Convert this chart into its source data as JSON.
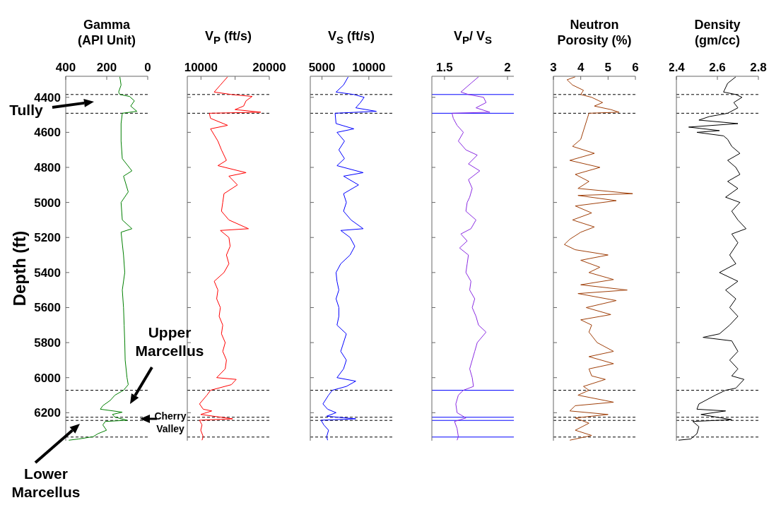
{
  "chart_data": [
    {
      "type": "line",
      "title": "Gamma (API Unit)",
      "ylabel": "Depth (ft)",
      "xlim": [
        400,
        0
      ],
      "xticks": [
        400,
        200,
        0
      ],
      "ylim": [
        6360,
        4280
      ],
      "yticks": [
        4400,
        4600,
        4800,
        5000,
        5200,
        5400,
        5600,
        5800,
        6000,
        6200
      ],
      "color": "#007f00",
      "annotations": [
        "Tully",
        "Upper Marcellus",
        "Cherry Valley",
        "Lower Marcellus"
      ],
      "x": [
        136,
        130,
        142,
        136,
        89,
        65,
        83,
        53,
        124,
        130,
        130,
        124,
        77,
        118,
        95,
        130,
        124,
        77,
        130,
        118,
        112,
        124,
        118,
        115,
        112,
        110,
        101,
        95,
        118,
        160,
        183,
        219,
        231,
        124,
        172,
        160,
        101,
        207,
        219,
        201,
        243,
        266,
        337,
        385
      ],
      "values": [
        4283,
        4330,
        4370,
        4384,
        4395,
        4420,
        4450,
        4480,
        4491,
        4550,
        4650,
        4750,
        4820,
        4850,
        4940,
        5000,
        5100,
        5150,
        5170,
        5300,
        5400,
        5500,
        5600,
        5700,
        5800,
        5900,
        6000,
        6040,
        6072,
        6100,
        6130,
        6160,
        6180,
        6197,
        6210,
        6225,
        6243,
        6250,
        6270,
        6300,
        6320,
        6337,
        6350,
        6357
      ],
      "ref_lines": [
        {
          "axis": "y",
          "value": 4384,
          "color": "#000000",
          "line_style": "dashed"
        },
        {
          "axis": "y",
          "value": 4491,
          "color": "#000000",
          "line_style": "dashed"
        },
        {
          "axis": "y",
          "value": 6072,
          "color": "#000000",
          "line_style": "dashed"
        },
        {
          "axis": "y",
          "value": 6226,
          "color": "#000000",
          "line_style": "dashed"
        },
        {
          "axis": "y",
          "value": 6244,
          "color": "#000000",
          "line_style": "dashed"
        },
        {
          "axis": "y",
          "value": 6339,
          "color": "#000000",
          "line_style": "dashed"
        }
      ]
    },
    {
      "type": "line",
      "title": "V$_{P}$ (ft/s)",
      "tick_labels": "x",
      "xlim": [
        8000,
        20000
      ],
      "xticks": [
        10000,
        {
          "value": 15000,
          "label": null
        },
        20000
      ],
      "ylim": [
        6360,
        4280
      ],
      "yticks": [
        4400,
        4600,
        4800,
        5000,
        5200,
        5400,
        5600,
        5800,
        6000,
        6200
      ],
      "color": "#ff0000",
      "x": [
        13900,
        12840,
        11940,
        14450,
        17490,
        16600,
        16240,
        14990,
        18750,
        11220,
        11400,
        13900,
        11400,
        12480,
        13000,
        13730,
        12480,
        16600,
        14090,
        15340,
        13370,
        13190,
        13000,
        14090,
        16950,
        12840,
        14090,
        14270,
        13730,
        14090,
        13370,
        11940,
        12480,
        12300,
        12840,
        12660,
        13190,
        13000,
        13550,
        13190,
        13730,
        13550,
        12300,
        15160,
        14450,
        11400,
        10870,
        9790,
        10330,
        11580,
        9970,
        14630,
        9790,
        10150,
        9970,
        10330,
        10150
      ],
      "values": [
        4283,
        4330,
        4370,
        4384,
        4395,
        4420,
        4450,
        4470,
        4485,
        4491,
        4520,
        4560,
        4580,
        4650,
        4700,
        4760,
        4790,
        4830,
        4850,
        4900,
        4950,
        5000,
        5050,
        5100,
        5150,
        5160,
        5200,
        5250,
        5300,
        5350,
        5400,
        5450,
        5500,
        5550,
        5600,
        5650,
        5700,
        5750,
        5800,
        5850,
        5900,
        5950,
        6000,
        6010,
        6040,
        6072,
        6100,
        6150,
        6180,
        6190,
        6210,
        6235,
        6243,
        6270,
        6300,
        6337,
        6357
      ],
      "ref_lines": [
        {
          "axis": "y",
          "value": 4384,
          "color": "#000000",
          "line_style": "dashed"
        },
        {
          "axis": "y",
          "value": 4491,
          "color": "#000000",
          "line_style": "dashed"
        },
        {
          "axis": "y",
          "value": 6072,
          "color": "#000000",
          "line_style": "dashed"
        },
        {
          "axis": "y",
          "value": 6226,
          "color": "#000000",
          "line_style": "dashed"
        },
        {
          "axis": "y",
          "value": 6244,
          "color": "#000000",
          "line_style": "dashed"
        },
        {
          "axis": "y",
          "value": 6339,
          "color": "#000000",
          "line_style": "dashed"
        }
      ]
    },
    {
      "type": "line",
      "title": "V$_{S}$ (ft/s)",
      "tick_labels": "x",
      "xlim": [
        3750,
        12500
      ],
      "xticks": [
        5000,
        10000
      ],
      "ylim": [
        6360,
        4280
      ],
      "yticks": [
        4400,
        4600,
        4800,
        5000,
        5200,
        5400,
        5600,
        5800,
        6000,
        6200
      ],
      "color": "#0000ff",
      "x": [
        7800,
        7300,
        6500,
        8400,
        9500,
        9100,
        8600,
        10800,
        6400,
        6500,
        8400,
        6600,
        7400,
        6800,
        7400,
        6600,
        9400,
        7300,
        8900,
        7300,
        7600,
        7300,
        8100,
        9400,
        7000,
        8000,
        8500,
        8000,
        7000,
        6500,
        6600,
        6800,
        6500,
        6800,
        6800,
        6600,
        7600,
        7300,
        7000,
        7600,
        7300,
        6600,
        8600,
        7600,
        6100,
        5700,
        5100,
        5600,
        6500,
        5500,
        8600,
        4900,
        5200,
        5700,
        5500,
        5600
      ],
      "values": [
        4283,
        4330,
        4370,
        4384,
        4400,
        4430,
        4460,
        4480,
        4491,
        4550,
        4580,
        4600,
        4650,
        4700,
        4750,
        4790,
        4830,
        4850,
        4900,
        4950,
        5000,
        5050,
        5100,
        5150,
        5160,
        5200,
        5250,
        5300,
        5350,
        5400,
        5450,
        5500,
        5550,
        5600,
        5650,
        5700,
        5750,
        5800,
        5850,
        5900,
        5950,
        6000,
        6020,
        6050,
        6072,
        6100,
        6150,
        6180,
        6200,
        6220,
        6235,
        6243,
        6270,
        6300,
        6337,
        6357
      ],
      "ref_lines": [
        {
          "axis": "y",
          "value": 4384,
          "color": "#000000",
          "line_style": "dashed"
        },
        {
          "axis": "y",
          "value": 4491,
          "color": "#000000",
          "line_style": "dashed"
        },
        {
          "axis": "y",
          "value": 6072,
          "color": "#000000",
          "line_style": "dashed"
        },
        {
          "axis": "y",
          "value": 6226,
          "color": "#000000",
          "line_style": "dashed"
        },
        {
          "axis": "y",
          "value": 6244,
          "color": "#000000",
          "line_style": "dashed"
        },
        {
          "axis": "y",
          "value": 6339,
          "color": "#000000",
          "line_style": "dashed"
        }
      ]
    },
    {
      "type": "line",
      "title": "V$_{P}$/ V$_{S}$",
      "tick_labels": "x",
      "xlim": [
        1.4,
        2.05
      ],
      "xticks": [
        1.5,
        2
      ],
      "ylim": [
        6360,
        4280
      ],
      "yticks": [
        4400,
        4600,
        4800,
        5000,
        5200,
        5400,
        5600,
        5800,
        6000,
        6200
      ],
      "color": "#8a2be2",
      "x": [
        1.77,
        1.71,
        1.63,
        1.69,
        1.81,
        1.83,
        1.75,
        1.86,
        1.56,
        1.57,
        1.6,
        1.65,
        1.61,
        1.67,
        1.76,
        1.69,
        1.78,
        1.69,
        1.72,
        1.7,
        1.68,
        1.67,
        1.75,
        1.71,
        1.63,
        1.68,
        1.62,
        1.69,
        1.68,
        1.67,
        1.71,
        1.7,
        1.74,
        1.72,
        1.75,
        1.77,
        1.83,
        1.76,
        1.74,
        1.72,
        1.7,
        1.72,
        1.73,
        1.65,
        1.61,
        1.59,
        1.6,
        1.67,
        1.58,
        1.6,
        1.61,
        1.6
      ],
      "values": [
        4283,
        4320,
        4370,
        4384,
        4400,
        4430,
        4460,
        4485,
        4491,
        4520,
        4560,
        4600,
        4650,
        4700,
        4730,
        4780,
        4820,
        4870,
        4920,
        4970,
        5000,
        5050,
        5100,
        5150,
        5180,
        5220,
        5260,
        5300,
        5350,
        5400,
        5450,
        5500,
        5550,
        5600,
        5650,
        5700,
        5740,
        5800,
        5850,
        5900,
        5950,
        6000,
        6050,
        6072,
        6100,
        6150,
        6200,
        6230,
        6250,
        6290,
        6337,
        6357
      ],
      "ref_lines": [
        {
          "axis": "y",
          "value": 4384,
          "color": "#0000ff",
          "line_style": "solid"
        },
        {
          "axis": "y",
          "value": 4491,
          "color": "#0000ff",
          "line_style": "solid"
        },
        {
          "axis": "y",
          "value": 6072,
          "color": "#0000ff",
          "line_style": "solid"
        },
        {
          "axis": "y",
          "value": 6226,
          "color": "#0000ff",
          "line_style": "solid"
        },
        {
          "axis": "y",
          "value": 6244,
          "color": "#0000ff",
          "line_style": "solid"
        },
        {
          "axis": "y",
          "value": 6339,
          "color": "#0000ff",
          "line_style": "solid"
        }
      ]
    },
    {
      "type": "line",
      "title": "Neutron Porosity (%)",
      "tick_labels": "x",
      "xlim": [
        3,
        6
      ],
      "xticks": [
        3,
        4,
        5,
        6
      ],
      "ylim": [
        6360,
        4280
      ],
      "yticks": [
        4400,
        4600,
        4800,
        5000,
        5200,
        5400,
        5600,
        5800,
        6000,
        6200
      ],
      "color": "#a0400a",
      "x": [
        3.8,
        3.5,
        3.7,
        4.1,
        4.0,
        4.4,
        4.8,
        4.5,
        5.1,
        5.4,
        4.3,
        4.0,
        3.7,
        4.5,
        3.6,
        4.7,
        3.8,
        4.3,
        3.9,
        5.9,
        3.9,
        5.3,
        3.8,
        4.4,
        3.7,
        4.5,
        4.0,
        3.6,
        3.4,
        3.8,
        5.0,
        4.0,
        4.7,
        4.3,
        5.2,
        4.0,
        5.7,
        3.9,
        5.3,
        4.2,
        5.1,
        4.0,
        4.4,
        4.3,
        4.6,
        5.2,
        4.3,
        5.2,
        4.3,
        4.4,
        4.9,
        4.1,
        4.3,
        3.9,
        5.2,
        3.8,
        3.6,
        5.0,
        3.8,
        4.3,
        3.8,
        4.4,
        3.6
      ],
      "values": [
        4283,
        4300,
        4330,
        4360,
        4384,
        4400,
        4430,
        4450,
        4470,
        4485,
        4491,
        4640,
        4680,
        4720,
        4760,
        4800,
        4840,
        4880,
        4920,
        4950,
        4960,
        4990,
        5020,
        5060,
        5100,
        5140,
        5170,
        5210,
        5240,
        5270,
        5300,
        5330,
        5370,
        5400,
        5440,
        5470,
        5500,
        5520,
        5560,
        5600,
        5640,
        5670,
        5700,
        5740,
        5800,
        5850,
        5880,
        5920,
        5950,
        5990,
        6010,
        6050,
        6072,
        6100,
        6140,
        6160,
        6190,
        6210,
        6230,
        6260,
        6300,
        6330,
        6357
      ],
      "ref_lines": [
        {
          "axis": "y",
          "value": 4384,
          "color": "#000000",
          "line_style": "dashed"
        },
        {
          "axis": "y",
          "value": 4491,
          "color": "#000000",
          "line_style": "dashed"
        },
        {
          "axis": "y",
          "value": 6072,
          "color": "#000000",
          "line_style": "dashed"
        },
        {
          "axis": "y",
          "value": 6226,
          "color": "#000000",
          "line_style": "dashed"
        },
        {
          "axis": "y",
          "value": 6244,
          "color": "#000000",
          "line_style": "dashed"
        },
        {
          "axis": "y",
          "value": 6339,
          "color": "#000000",
          "line_style": "dashed"
        }
      ]
    },
    {
      "type": "line",
      "title": "Density (gm/cc)",
      "tick_labels": "x",
      "xlim": [
        2.4,
        2.8
      ],
      "xticks": [
        2.4,
        2.6,
        2.8
      ],
      "ylim": [
        6360,
        4280
      ],
      "yticks": [
        4400,
        4600,
        4800,
        5000,
        5200,
        5400,
        5600,
        5800,
        6000,
        6200
      ],
      "color": "#000000",
      "x": [
        2.69,
        2.65,
        2.63,
        2.69,
        2.72,
        2.68,
        2.7,
        2.65,
        2.56,
        2.51,
        2.7,
        2.46,
        2.61,
        2.5,
        2.63,
        2.65,
        2.67,
        2.71,
        2.65,
        2.69,
        2.71,
        2.65,
        2.7,
        2.64,
        2.71,
        2.67,
        2.7,
        2.74,
        2.67,
        2.7,
        2.66,
        2.69,
        2.61,
        2.7,
        2.64,
        2.69,
        2.66,
        2.7,
        2.66,
        2.61,
        2.53,
        2.67,
        2.7,
        2.66,
        2.7,
        2.67,
        2.73,
        2.69,
        2.64,
        2.59,
        2.51,
        2.5,
        2.64,
        2.52,
        2.67,
        2.48,
        2.51,
        2.5,
        2.47,
        2.41
      ],
      "values": [
        4283,
        4320,
        4370,
        4384,
        4400,
        4430,
        4460,
        4491,
        4510,
        4530,
        4550,
        4570,
        4590,
        4600,
        4620,
        4640,
        4680,
        4720,
        4760,
        4800,
        4840,
        4880,
        4920,
        4970,
        5000,
        5050,
        5100,
        5150,
        5180,
        5230,
        5300,
        5350,
        5400,
        5450,
        5500,
        5550,
        5600,
        5650,
        5700,
        5750,
        5770,
        5790,
        5850,
        5900,
        5950,
        5990,
        6010,
        6060,
        6072,
        6100,
        6150,
        6180,
        6190,
        6210,
        6240,
        6250,
        6280,
        6320,
        6350,
        6357
      ],
      "ref_lines": [
        {
          "axis": "y",
          "value": 4384,
          "color": "#000000",
          "line_style": "dashed"
        },
        {
          "axis": "y",
          "value": 4491,
          "color": "#000000",
          "line_style": "dashed"
        },
        {
          "axis": "y",
          "value": 6072,
          "color": "#000000",
          "line_style": "dashed"
        },
        {
          "axis": "y",
          "value": 6226,
          "color": "#000000",
          "line_style": "dashed"
        },
        {
          "axis": "y",
          "value": 6244,
          "color": "#000000",
          "line_style": "dashed"
        },
        {
          "axis": "y",
          "value": 6339,
          "color": "#000000",
          "line_style": "dashed"
        }
      ]
    }
  ]
}
